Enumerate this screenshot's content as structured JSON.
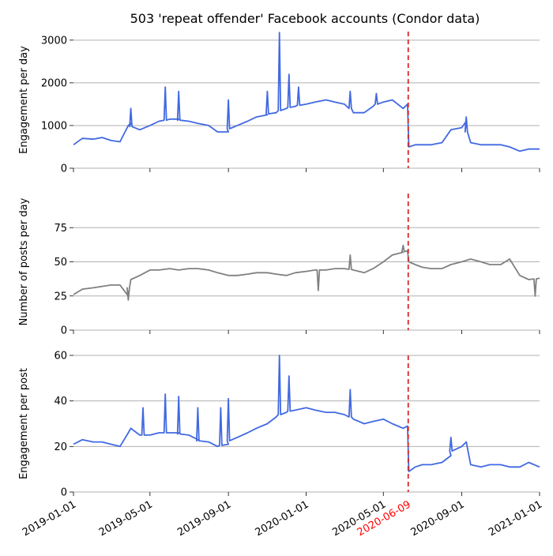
{
  "title": "503 'repeat offender' Facebook accounts (Condor data)",
  "colors": {
    "blue_series": "#4169e1",
    "grey_series": "#808080",
    "event_line": "#d62728",
    "event_label": "#ff0000",
    "grid": "#b0b0b0"
  },
  "event": {
    "date": "2020-06-09",
    "label": "2020-06-09"
  },
  "x_axis": {
    "range": [
      "2019-01-01",
      "2021-01-01"
    ],
    "ticks": [
      "2019-01-01",
      "2019-05-01",
      "2019-09-01",
      "2020-01-01",
      "2020-05-01",
      "2020-09-01",
      "2021-01-01"
    ]
  },
  "chart_data": [
    {
      "type": "line",
      "ylabel": "Engagement per day",
      "ylim": [
        0,
        3200
      ],
      "yticks": [
        0,
        1000,
        2000,
        3000
      ],
      "grid": true,
      "series": [
        {
          "color": "#4169e1",
          "x": [
            "2019-01-01",
            "2019-01-15",
            "2019-02-01",
            "2019-02-15",
            "2019-03-01",
            "2019-03-15",
            "2019-03-28",
            "2019-04-01",
            "2019-04-15",
            "2019-05-01",
            "2019-05-15",
            "2019-06-01",
            "2019-06-15",
            "2019-07-01",
            "2019-07-15",
            "2019-08-01",
            "2019-08-15",
            "2019-09-01",
            "2019-09-15",
            "2019-10-01",
            "2019-10-15",
            "2019-11-01",
            "2019-11-15",
            "2019-12-01",
            "2019-12-15",
            "2020-01-01",
            "2020-01-15",
            "2020-02-01",
            "2020-02-15",
            "2020-03-01",
            "2020-03-15",
            "2020-04-01",
            "2020-04-15",
            "2020-05-01",
            "2020-05-15",
            "2020-06-01",
            "2020-06-08",
            "2020-06-10",
            "2020-06-20",
            "2020-07-01",
            "2020-07-15",
            "2020-08-01",
            "2020-08-15",
            "2020-09-01",
            "2020-09-08",
            "2020-09-15",
            "2020-10-01",
            "2020-10-15",
            "2020-11-01",
            "2020-11-15",
            "2020-12-01",
            "2020-12-15",
            "2021-01-01"
          ],
          "y": [
            550,
            700,
            680,
            720,
            650,
            620,
            1000,
            1050,
            900,
            1000,
            1100,
            1150,
            1150,
            1100,
            1050,
            1000,
            850,
            850,
            1000,
            1100,
            1200,
            1250,
            1300,
            1400,
            1450,
            1500,
            1550,
            1600,
            1550,
            1500,
            1300,
            1300,
            1450,
            1550,
            1600,
            1400,
            1500,
            500,
            550,
            550,
            550,
            600,
            900,
            950,
            1100,
            600,
            550,
            550,
            550,
            500,
            400,
            450,
            450
          ],
          "spikes": [
            {
              "x": "2019-04-01",
              "y": 1400
            },
            {
              "x": "2019-05-25",
              "y": 1900
            },
            {
              "x": "2019-06-15",
              "y": 1800
            },
            {
              "x": "2019-09-01",
              "y": 1600
            },
            {
              "x": "2019-11-01",
              "y": 1800
            },
            {
              "x": "2019-11-20",
              "y": 3180
            },
            {
              "x": "2019-12-05",
              "y": 2200
            },
            {
              "x": "2019-12-20",
              "y": 1900
            },
            {
              "x": "2020-03-10",
              "y": 1800
            },
            {
              "x": "2020-04-20",
              "y": 1750
            },
            {
              "x": "2020-09-08",
              "y": 1200
            }
          ]
        }
      ]
    },
    {
      "type": "line",
      "ylabel": "Number of posts per day",
      "ylim": [
        0,
        100
      ],
      "yticks": [
        0,
        25,
        50,
        75
      ],
      "grid": true,
      "series": [
        {
          "color": "#808080",
          "x": [
            "2019-01-01",
            "2019-01-15",
            "2019-02-01",
            "2019-02-15",
            "2019-03-01",
            "2019-03-15",
            "2019-03-28",
            "2019-04-01",
            "2019-04-15",
            "2019-05-01",
            "2019-05-15",
            "2019-06-01",
            "2019-06-15",
            "2019-07-01",
            "2019-07-15",
            "2019-08-01",
            "2019-08-15",
            "2019-09-01",
            "2019-09-15",
            "2019-10-01",
            "2019-10-15",
            "2019-11-01",
            "2019-11-15",
            "2019-12-01",
            "2019-12-15",
            "2020-01-01",
            "2020-01-15",
            "2020-02-01",
            "2020-02-15",
            "2020-03-01",
            "2020-03-15",
            "2020-04-01",
            "2020-04-15",
            "2020-05-01",
            "2020-05-15",
            "2020-06-01",
            "2020-06-08",
            "2020-06-10",
            "2020-06-20",
            "2020-07-01",
            "2020-07-15",
            "2020-08-01",
            "2020-08-15",
            "2020-09-01",
            "2020-09-15",
            "2020-10-01",
            "2020-10-15",
            "2020-11-01",
            "2020-11-15",
            "2020-12-01",
            "2020-12-15",
            "2021-01-01"
          ],
          "y": [
            26,
            30,
            31,
            32,
            33,
            33,
            25,
            37,
            40,
            44,
            44,
            45,
            44,
            45,
            45,
            44,
            42,
            40,
            40,
            41,
            42,
            42,
            41,
            40,
            42,
            43,
            44,
            44,
            45,
            45,
            44,
            42,
            45,
            50,
            55,
            57,
            58,
            50,
            48,
            46,
            45,
            45,
            48,
            50,
            52,
            50,
            48,
            48,
            52,
            40,
            37,
            38
          ],
          "spikes": [
            {
              "x": "2019-03-28",
              "y": 22
            },
            {
              "x": "2020-06-01",
              "y": 62
            },
            {
              "x": "2020-03-10",
              "y": 55
            },
            {
              "x": "2020-01-20",
              "y": 29
            },
            {
              "x": "2020-12-25",
              "y": 25
            }
          ]
        }
      ]
    },
    {
      "type": "line",
      "ylabel": "Engagement per post",
      "ylim": [
        0,
        60
      ],
      "yticks": [
        0,
        20,
        40,
        60
      ],
      "grid": true,
      "series": [
        {
          "color": "#4169e1",
          "x": [
            "2019-01-01",
            "2019-01-15",
            "2019-02-01",
            "2019-02-15",
            "2019-03-01",
            "2019-03-15",
            "2019-03-28",
            "2019-04-01",
            "2019-04-15",
            "2019-05-01",
            "2019-05-15",
            "2019-06-01",
            "2019-06-15",
            "2019-07-01",
            "2019-07-15",
            "2019-08-01",
            "2019-08-15",
            "2019-09-01",
            "2019-09-15",
            "2019-10-01",
            "2019-10-15",
            "2019-11-01",
            "2019-11-15",
            "2019-12-01",
            "2019-12-15",
            "2020-01-01",
            "2020-01-15",
            "2020-02-01",
            "2020-02-15",
            "2020-03-01",
            "2020-03-15",
            "2020-04-01",
            "2020-04-15",
            "2020-05-01",
            "2020-05-15",
            "2020-06-01",
            "2020-06-08",
            "2020-06-10",
            "2020-06-20",
            "2020-07-01",
            "2020-07-15",
            "2020-08-01",
            "2020-08-15",
            "2020-09-01",
            "2020-09-08",
            "2020-09-15",
            "2020-10-01",
            "2020-10-15",
            "2020-11-01",
            "2020-11-15",
            "2020-12-01",
            "2020-12-15",
            "2021-01-01"
          ],
          "y": [
            21,
            23,
            22,
            22,
            21,
            20,
            26,
            28,
            25,
            25,
            26,
            26,
            26,
            25,
            23,
            22,
            20,
            21,
            24,
            26,
            28,
            30,
            33,
            35,
            36,
            37,
            36,
            35,
            35,
            34,
            32,
            30,
            31,
            32,
            30,
            28,
            29,
            9,
            11,
            12,
            12,
            13,
            16,
            20,
            22,
            12,
            11,
            12,
            12,
            11,
            11,
            13,
            11
          ],
          "spikes": [
            {
              "x": "2019-04-20",
              "y": 37
            },
            {
              "x": "2019-05-25",
              "y": 43
            },
            {
              "x": "2019-06-15",
              "y": 42
            },
            {
              "x": "2019-07-15",
              "y": 37
            },
            {
              "x": "2019-08-20",
              "y": 37
            },
            {
              "x": "2019-09-01",
              "y": 41
            },
            {
              "x": "2019-11-20",
              "y": 60
            },
            {
              "x": "2019-12-05",
              "y": 51
            },
            {
              "x": "2020-03-10",
              "y": 45
            },
            {
              "x": "2020-08-15",
              "y": 24
            }
          ]
        }
      ]
    }
  ]
}
